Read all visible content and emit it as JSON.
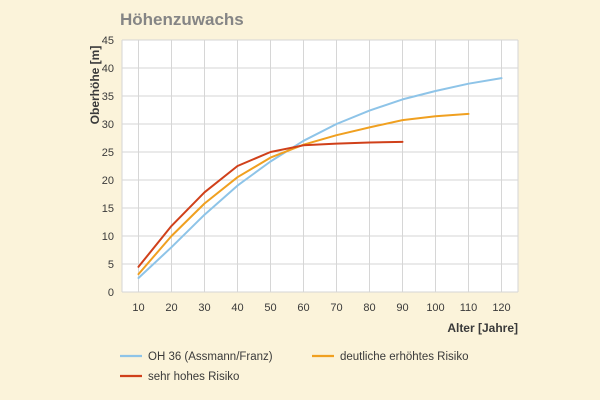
{
  "chart_data": {
    "type": "line",
    "title": "Höhenzuwachs",
    "xlabel": "Alter [Jahre]",
    "ylabel": "Oberhöhe [m]",
    "xlim": [
      5,
      125
    ],
    "ylim": [
      0,
      45
    ],
    "x_ticks": [
      10,
      20,
      30,
      40,
      50,
      60,
      70,
      80,
      90,
      100,
      110,
      120
    ],
    "y_ticks": [
      0,
      5,
      10,
      15,
      20,
      25,
      30,
      35,
      40,
      45
    ],
    "grid": true,
    "legend_position": "bottom",
    "series": [
      {
        "name": "OH 36 (Assmann/Franz)",
        "color": "#8ec4e8",
        "x": [
          10,
          20,
          30,
          40,
          50,
          60,
          70,
          80,
          90,
          100,
          110,
          120
        ],
        "y": [
          2.5,
          8,
          13.8,
          19,
          23.3,
          27,
          30,
          32.4,
          34.4,
          35.9,
          37.2,
          38.2
        ]
      },
      {
        "name": "deutliche erhöhtes Risiko",
        "color": "#f0a020",
        "x": [
          10,
          20,
          30,
          40,
          50,
          60,
          70,
          80,
          90,
          100,
          110
        ],
        "y": [
          3.2,
          10,
          15.8,
          20.5,
          24,
          26.3,
          28,
          29.4,
          30.7,
          31.4,
          31.8
        ]
      },
      {
        "name": "sehr hohes Risiko",
        "color": "#d0401a",
        "x": [
          10,
          20,
          30,
          40,
          50,
          60,
          70,
          80,
          90
        ],
        "y": [
          4.5,
          11.8,
          17.8,
          22.5,
          25,
          26.2,
          26.5,
          26.7,
          26.8
        ]
      }
    ]
  }
}
